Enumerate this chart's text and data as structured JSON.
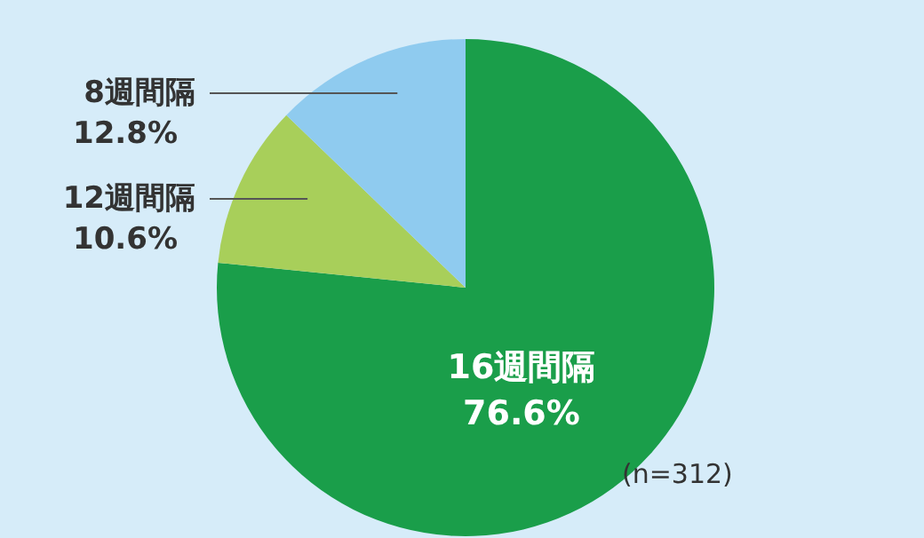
{
  "chart_data": {
    "type": "pie",
    "categories": [
      "16週間隔",
      "12週間隔",
      "8週間隔"
    ],
    "values": [
      76.6,
      10.6,
      12.8
    ],
    "colors": [
      "#1a9e4a",
      "#a8cf5a",
      "#8fcbef"
    ],
    "value_labels": [
      "76.6%",
      "10.6%",
      "12.8%"
    ],
    "annotations": [
      "(n=312)"
    ]
  }
}
